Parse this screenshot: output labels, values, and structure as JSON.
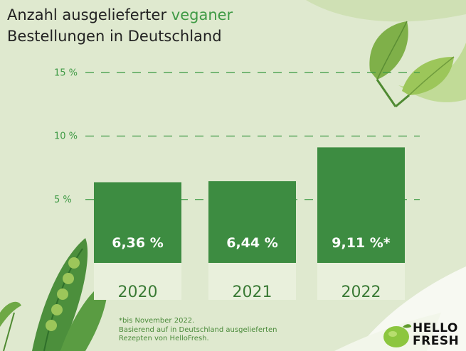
{
  "title": {
    "line1_prefix": "Anzahl ausgelieferter",
    "line1_accent": "veganer",
    "line2": "Bestellungen in Deutschland"
  },
  "chart_data": {
    "type": "bar",
    "categories": [
      "2020",
      "2021",
      "2022"
    ],
    "values": [
      6.36,
      6.44,
      9.11
    ],
    "value_labels": [
      "6,36 %",
      "6,44 %",
      "9,11 %*"
    ],
    "yticks": [
      5,
      10,
      15
    ],
    "ytick_labels": [
      "5 %",
      "10 %",
      "15 %"
    ],
    "ylim": [
      0,
      15
    ],
    "grid": "dashed horizontal lines",
    "bar_color": "#3d8c41",
    "label_band_color": "#e9f0dc",
    "accent_color": "#3f9a45"
  },
  "footnote": {
    "line1": "*bis November 2022.",
    "line2": "Basierend auf in Deutschland ausgelieferten",
    "line3": "Rezepten von HelloFresh."
  },
  "brand": {
    "line1": "HELLO",
    "line2": "FRESH",
    "color": "#111111",
    "logo_color": "#8cc63f"
  }
}
